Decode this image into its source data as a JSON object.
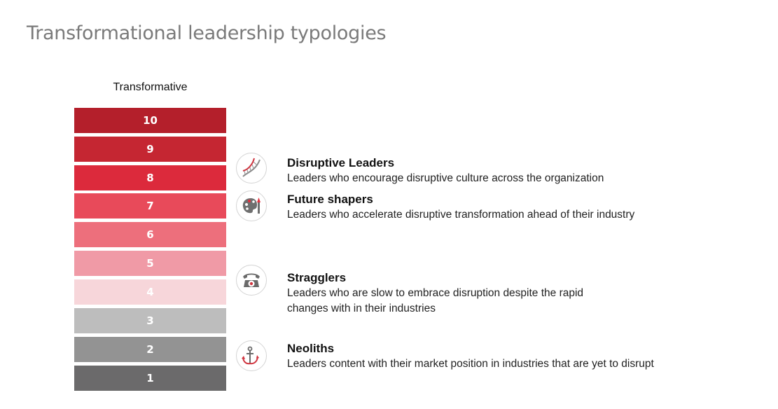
{
  "title": "Transformational leadership typologies",
  "scale": {
    "top_label": "Transformative",
    "levels": [
      {
        "label": "10",
        "color": "#b41f2b"
      },
      {
        "label": "9",
        "color": "#c52632"
      },
      {
        "label": "8",
        "color": "#dc2a3c"
      },
      {
        "label": "7",
        "color": "#e84a5a"
      },
      {
        "label": "6",
        "color": "#ed6f7c"
      },
      {
        "label": "5",
        "color": "#f09aa6"
      },
      {
        "label": "4",
        "color": "#f7d6da"
      },
      {
        "label": "3",
        "color": "#bdbdbd"
      },
      {
        "label": "2",
        "color": "#939393"
      },
      {
        "label": "1",
        "color": "#6b6a6b"
      }
    ]
  },
  "typologies": [
    {
      "name": "Disruptive Leaders",
      "description": "Leaders who encourage disruptive culture across the organization",
      "icon": "dna-icon"
    },
    {
      "name": "Future shapers",
      "description": "Leaders who accelerate disruptive transformation ahead of their industry",
      "icon": "palette-brush-icon"
    },
    {
      "name": "Stragglers",
      "description": "Leaders who are slow to embrace disruption despite the rapid changes with in their industries",
      "icon": "rotary-phone-icon"
    },
    {
      "name": "Neoliths",
      "description": "Leaders content with their market position in industries that are yet to disrupt",
      "icon": "anchor-icon"
    }
  ]
}
